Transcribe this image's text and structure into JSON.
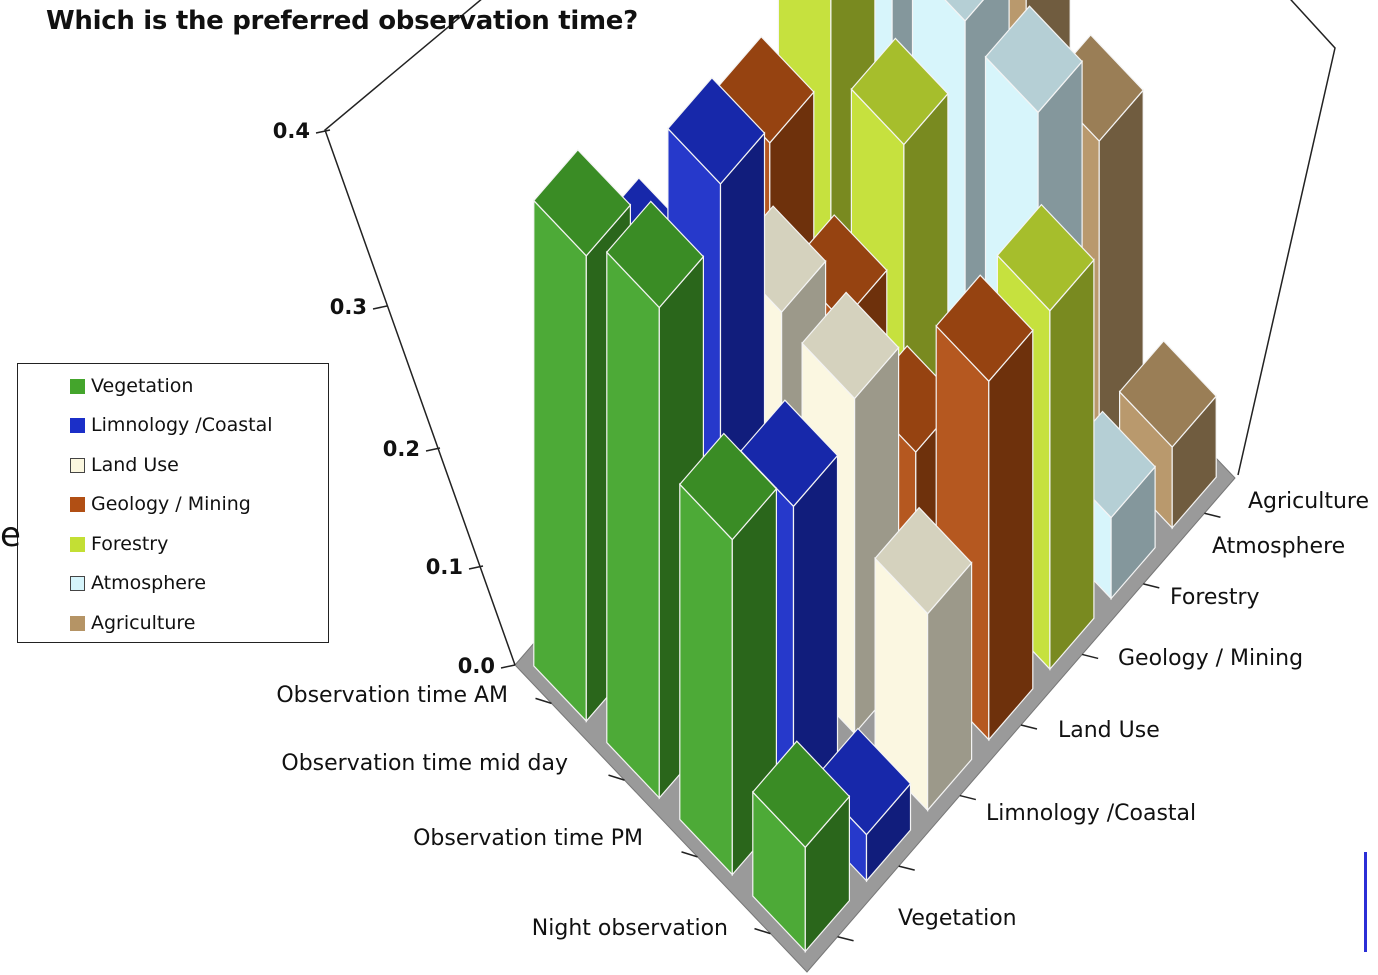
{
  "chart_data": {
    "type": "bar",
    "title": "Which is the preferred observation time?",
    "x_axis_categories": [
      "Observation time AM",
      "Observation time mid day",
      "Observation time PM",
      "Night observation"
    ],
    "categories": [
      "Observation time AM",
      "Observation time mid day",
      "Observation time PM",
      "Night observation"
    ],
    "y_axis_categories": [
      "Vegetation",
      "Limnology /Coastal",
      "Land Use",
      "Geology / Mining",
      "Forestry",
      "Atmosphere",
      "Agriculture"
    ],
    "z_ticks": [
      "0.0",
      "0.1",
      "0.2",
      "0.3",
      "0.4"
    ],
    "zlim": [
      0,
      0.4
    ],
    "grid": false,
    "legend_position": "left",
    "series": [
      {
        "name": "Vegetation",
        "color": "#44a52c",
        "values": [
          0.33,
          0.37,
          0.27,
          0.09
        ]
      },
      {
        "name": "Limnology /Coastal",
        "color": "#1b2fc8",
        "values": [
          0.26,
          0.41,
          0.24,
          0.04
        ]
      },
      {
        "name": "Land Use",
        "color": "#fbf7df",
        "values": [
          0.2,
          0.26,
          0.27,
          0.17
        ]
      },
      {
        "name": "Geology / Mining",
        "color": "#b14f14",
        "values": [
          0.26,
          0.2,
          0.17,
          0.31
        ]
      },
      {
        "name": "Forestry",
        "color": "#c3df34",
        "values": [
          0.38,
          0.28,
          0.06,
          0.31
        ]
      },
      {
        "name": "Atmosphere",
        "color": "#d5f4fb",
        "values": [
          0.32,
          0.32,
          0.33,
          0.07
        ]
      },
      {
        "name": "Agriculture",
        "color": "#b59465",
        "values": [
          0.4,
          0.33,
          0.25,
          0.07
        ]
      }
    ]
  },
  "edge_glyph": "e"
}
